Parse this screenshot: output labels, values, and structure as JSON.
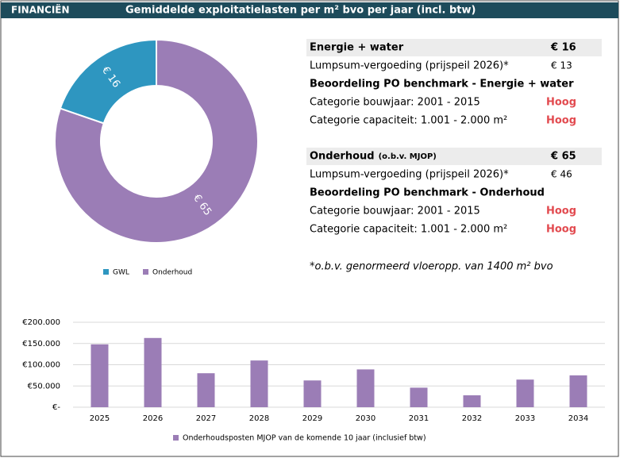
{
  "header": {
    "section": "FINANCIËN",
    "title": "Gemiddelde exploitatielasten per m² bvo per jaar (incl. btw)"
  },
  "chart_data": [
    {
      "type": "pie",
      "donut": true,
      "categories": [
        "GWL",
        "Onderhoud"
      ],
      "values": [
        16,
        65
      ],
      "value_labels": [
        "€ 16",
        "€ 65"
      ],
      "colors": [
        "#2e96c0",
        "#9b7db6"
      ]
    },
    {
      "type": "bar",
      "categories": [
        "2025",
        "2026",
        "2027",
        "2028",
        "2029",
        "2030",
        "2031",
        "2032",
        "2033",
        "2034"
      ],
      "series": [
        {
          "name": "Onderhoudsposten MJOP van de komende 10 jaar (inclusief btw)",
          "color": "#9b7db6",
          "values": [
            148000,
            163000,
            80000,
            110000,
            63000,
            89000,
            46000,
            28000,
            65000,
            75000
          ]
        }
      ],
      "ylim": [
        0,
        200000
      ],
      "yticks": [
        {
          "value": 0,
          "label": "€-"
        },
        {
          "value": 50000,
          "label": "€50.000"
        },
        {
          "value": 100000,
          "label": "€100.000"
        },
        {
          "value": 150000,
          "label": "€150.000"
        },
        {
          "value": 200000,
          "label": "€200.000"
        }
      ],
      "grid": true
    }
  ],
  "table": {
    "sections": [
      {
        "title": "Energie + water",
        "amount": "€ 16",
        "lumpsum_label": "Lumpsum-vergoeding (prijspeil 2026)*",
        "lumpsum_amount": "€ 13",
        "benchmark_title": "Beoordeling PO benchmark - Energie + water",
        "rows": [
          {
            "label": "Categorie bouwjaar: 2001 - 2015",
            "rating": "Hoog"
          },
          {
            "label": "Categorie capaciteit: 1.001 - 2.000 m²",
            "rating": "Hoog"
          }
        ]
      },
      {
        "title": "Onderhoud",
        "title_note": "(o.b.v. MJOP)",
        "amount": "€ 65",
        "lumpsum_label": "Lumpsum-vergoeding (prijspeil 2026)*",
        "lumpsum_amount": "€ 46",
        "benchmark_title": "Beoordeling PO benchmark - Onderhoud",
        "rows": [
          {
            "label": "Categorie bouwjaar: 2001 - 2015",
            "rating": "Hoog"
          },
          {
            "label": "Categorie capaciteit: 1.001 - 2.000 m²",
            "rating": "Hoog"
          }
        ]
      }
    ],
    "note": "*o.b.v. genormeerd vloeropp. van 1400 m² bvo"
  }
}
